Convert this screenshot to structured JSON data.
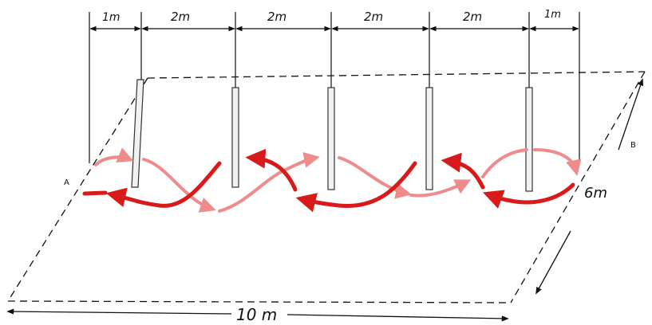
{
  "diagram": {
    "segment_labels": [
      "1m",
      "2m",
      "2m",
      "2m",
      "2m",
      "1m"
    ],
    "point_labels": {
      "start": "A",
      "end": "B"
    },
    "width_label": "6m",
    "length_label": "10 m",
    "pole_count": 5,
    "colors": {
      "line": "#111111",
      "path_strong": "#d91a1a",
      "path_light": "#ef8b8b",
      "pole_fill": "#f2f2f2"
    }
  }
}
